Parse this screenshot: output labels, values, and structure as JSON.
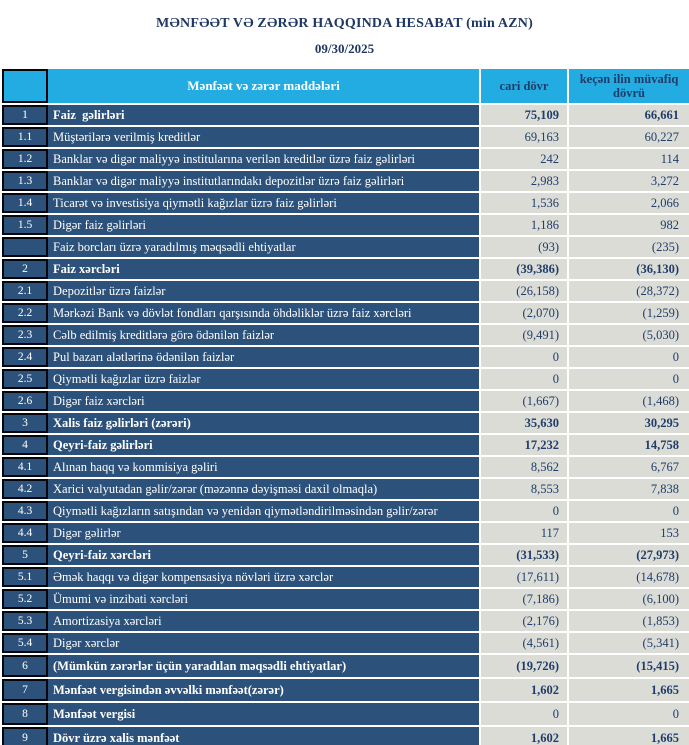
{
  "title": "MƏNFƏƏT VƏ ZƏRƏR HAQQINDA HESABAT (min AZN)",
  "date": "09/30/2025",
  "colors": {
    "header_cyan": "#22ACE2",
    "row_navy": "#2C527B",
    "value_gray": "#DCDCD6",
    "value_text_navy": "#1F3D6B",
    "title_navy": "#1F3864",
    "number_cell_border": "#06060c"
  },
  "table": {
    "headers": {
      "num": "",
      "item": "Mənfəət və zərər maddələri",
      "current": "cari dövr",
      "previous": "keçən ilin müvafiq dövrü"
    },
    "rows": [
      {
        "num": "1",
        "label": "Faiz  gəlirləri",
        "current": "75,109",
        "previous": "66,661",
        "label_bold": true,
        "value_bold": true,
        "tall": false
      },
      {
        "num": "1.1",
        "label": "Müştərilərə verilmiş kreditlər",
        "current": "69,163",
        "previous": "60,227",
        "label_bold": false,
        "value_bold": false,
        "tall": false
      },
      {
        "num": "1.2",
        "label": "Banklar və digər maliyyə institularına verilən kreditlər üzrə faiz gəlirləri",
        "current": "242",
        "previous": "114",
        "label_bold": false,
        "value_bold": false,
        "tall": false
      },
      {
        "num": "1.3",
        "label": "Banklar və digər maliyyə institutlarındakı depozitlər üzrə faiz gəlirləri",
        "current": "2,983",
        "previous": "3,272",
        "label_bold": false,
        "value_bold": false,
        "tall": false
      },
      {
        "num": "1.4",
        "label": "Ticarət və investisiya qiymətli kağızlar üzrə faiz gəlirləri",
        "current": "1,536",
        "previous": "2,066",
        "label_bold": false,
        "value_bold": false,
        "tall": false
      },
      {
        "num": "1.5",
        "label": "Digər faiz gəlirləri",
        "current": "1,186",
        "previous": "982",
        "label_bold": false,
        "value_bold": false,
        "tall": false
      },
      {
        "num": "",
        "label": "Faiz borcları üzrə yaradılmış məqsədli ehtiyatlar",
        "current": "(93)",
        "previous": "(235)",
        "label_bold": false,
        "value_bold": false,
        "tall": false
      },
      {
        "num": "2",
        "label": "Faiz xərcləri",
        "current": "(39,386)",
        "previous": "(36,130)",
        "label_bold": true,
        "value_bold": true,
        "tall": false
      },
      {
        "num": "2.1",
        "label": "Depozitlər üzrə faizlər",
        "current": "(26,158)",
        "previous": "(28,372)",
        "label_bold": false,
        "value_bold": false,
        "tall": false
      },
      {
        "num": "2.2",
        "label": "Mərkəzi Bank və dövlət fondları qarşısında öhdəliklər üzrə faiz xərcləri",
        "current": "(2,070)",
        "previous": "(1,259)",
        "label_bold": false,
        "value_bold": false,
        "tall": false
      },
      {
        "num": "2.3",
        "label": "Cəlb edilmiş kreditlərə görə ödənilən faizlər",
        "current": "(9,491)",
        "previous": "(5,030)",
        "label_bold": false,
        "value_bold": false,
        "tall": false
      },
      {
        "num": "2.4",
        "label": "Pul bazarı alətlərinə ödənilən faizlər",
        "current": "0",
        "previous": "0",
        "label_bold": false,
        "value_bold": false,
        "tall": false
      },
      {
        "num": "2.5",
        "label": "Qiymətli kağızlar üzrə faizlər",
        "current": "0",
        "previous": "0",
        "label_bold": false,
        "value_bold": false,
        "tall": false
      },
      {
        "num": "2.6",
        "label": "Digər faiz xərcləri",
        "current": "(1,667)",
        "previous": "(1,468)",
        "label_bold": false,
        "value_bold": false,
        "tall": false
      },
      {
        "num": "3",
        "label": "Xalis faiz gəlirləri (zərəri)",
        "current": "35,630",
        "previous": "30,295",
        "label_bold": true,
        "value_bold": true,
        "tall": false
      },
      {
        "num": "4",
        "label": "Qeyri-faiz gəlirləri",
        "current": "17,232",
        "previous": "14,758",
        "label_bold": true,
        "value_bold": true,
        "tall": false
      },
      {
        "num": "4.1",
        "label": "Alınan haqq və kommisiya gəliri",
        "current": "8,562",
        "previous": "6,767",
        "label_bold": false,
        "value_bold": false,
        "tall": false
      },
      {
        "num": "4.2",
        "label": "Xarici valyutadan gəlir/zərər (məzənnə dəyişməsi daxil olmaqla)",
        "current": "8,553",
        "previous": "7,838",
        "label_bold": false,
        "value_bold": false,
        "tall": false
      },
      {
        "num": "4.3",
        "label": "Qiymətli kağızların satışından və yenidən qiymətləndirilməsindən gəlir/zərər",
        "current": "0",
        "previous": "0",
        "label_bold": false,
        "value_bold": false,
        "tall": false
      },
      {
        "num": "4.4",
        "label": "Digər gəlirlər",
        "current": "117",
        "previous": "153",
        "label_bold": false,
        "value_bold": false,
        "tall": false
      },
      {
        "num": "5",
        "label": "Qeyri-faiz xərcləri",
        "current": "(31,533)",
        "previous": "(27,973)",
        "label_bold": true,
        "value_bold": true,
        "tall": false
      },
      {
        "num": "5.1",
        "label": "Əmək haqqı və digər kompensasiya növləri üzrə xərclər",
        "current": "(17,611)",
        "previous": "(14,678)",
        "label_bold": false,
        "value_bold": false,
        "tall": false
      },
      {
        "num": "5.2",
        "label": "Ümumi və inzibati xərcləri",
        "current": "(7,186)",
        "previous": "(6,100)",
        "label_bold": false,
        "value_bold": false,
        "tall": false
      },
      {
        "num": "5.3",
        "label": "Amortizasiya xərcləri",
        "current": "(2,176)",
        "previous": "(1,853)",
        "label_bold": false,
        "value_bold": false,
        "tall": false
      },
      {
        "num": "5.4",
        "label": "Digər xərclər",
        "current": "(4,561)",
        "previous": "(5,341)",
        "label_bold": false,
        "value_bold": false,
        "tall": false
      },
      {
        "num": "6",
        "label": "(Mümkün zərərlər üçün yaradılan məqsədli ehtiyatlar)",
        "current": "(19,726)",
        "previous": "(15,415)",
        "label_bold": true,
        "value_bold": true,
        "tall": true
      },
      {
        "num": "7",
        "label": "Mənfəət vergisindən əvvəlki mənfəət(zərər)",
        "current": "1,602",
        "previous": "1,665",
        "label_bold": true,
        "value_bold": true,
        "tall": true
      },
      {
        "num": "8",
        "label": "Mənfəət vergisi",
        "current": "0",
        "previous": "0",
        "label_bold": true,
        "value_bold": false,
        "tall": true
      },
      {
        "num": "9",
        "label": "Dövr üzrə xalis mənfəət",
        "current": "1,602",
        "previous": "1,665",
        "label_bold": true,
        "value_bold": true,
        "tall": true
      }
    ]
  }
}
